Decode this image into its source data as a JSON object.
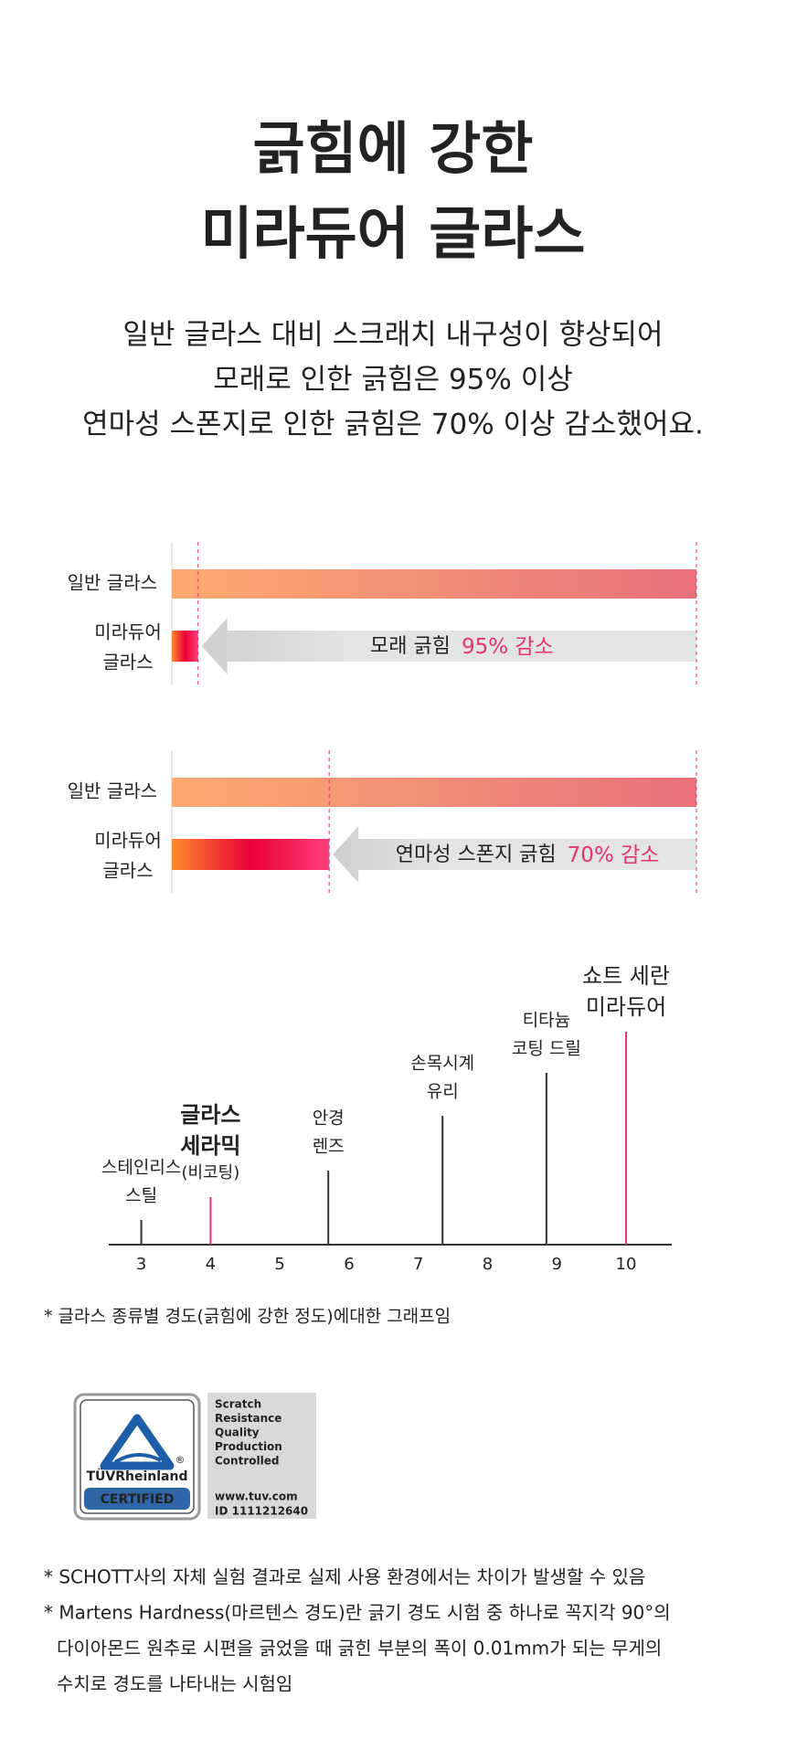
{
  "header": {
    "title": [
      "긁힘에 강한",
      "미라듀어 글라스"
    ],
    "description": [
      "일반 글라스 대비 스크래치 내구성이 향상되어",
      "모래로 인한 긁힘은 95% 이상",
      "연마성 스폰지로 인한 긁힘은 70% 이상 감소했어요."
    ]
  },
  "comparisons": [
    {
      "baseline_label": "일반 글라스",
      "product_label": [
        "미라듀어",
        "글라스"
      ],
      "test": "모래 긁힘",
      "value": 95,
      "value_label": "95% 감소"
    },
    {
      "baseline_label": "일반 글라스",
      "product_label": [
        "미라듀어",
        "글라스"
      ],
      "test": "연마성 스폰지 긁힘",
      "value": 70,
      "value_label": "70% 감소"
    }
  ],
  "chart_data": {
    "type": "stem",
    "x": [
      3,
      4,
      5.7,
      7.35,
      8.85,
      10
    ],
    "labels": [
      [
        "스테인리스",
        "스틸"
      ],
      [
        "글라스",
        "세라믹"
      ],
      [
        "안경",
        "렌즈"
      ],
      [
        "손목시계",
        "유리"
      ],
      [
        "티타늄",
        "코팅 드릴"
      ],
      [
        "쇼트 세란",
        "미라듀어"
      ]
    ],
    "sublabels": {
      "1": "(비코팅)"
    },
    "colors": [
      "#333333",
      "#e6356a",
      "#333333",
      "#333333",
      "#333333",
      "#e6356a"
    ],
    "xlim": [
      2.53,
      10.66
    ],
    "xticks": [
      3,
      4,
      5,
      6,
      7,
      8,
      9,
      10
    ]
  },
  "footnote": "* 글라스 종류별 경도(긁힘에 강한 정도)에대한 그래프임",
  "badge": {
    "brand": "TÜVRheinland",
    "registered": "®",
    "certified": "CERTIFIED",
    "lines": [
      "Scratch",
      "Resistance",
      "Quality",
      "Production",
      "Controlled"
    ],
    "website": "www.tuv.com",
    "id": "ID 1111212640"
  },
  "notes": [
    [
      "* SCHOTT사의 자체 실험 결과로 실제 사용 환경에서는 차이가 발생할 수 있음"
    ],
    [
      "* Martens Hardness(마르텐스 경도)란 긁기 경도 시험 중 하나로 꼭지각 90°의",
      "다이아몬드 원추로 시편을 긁었을 때 긁힌 부분의 폭이 0.01mm가 되는 무게의",
      "수치로 경도를 나타내는 시험임"
    ]
  ]
}
